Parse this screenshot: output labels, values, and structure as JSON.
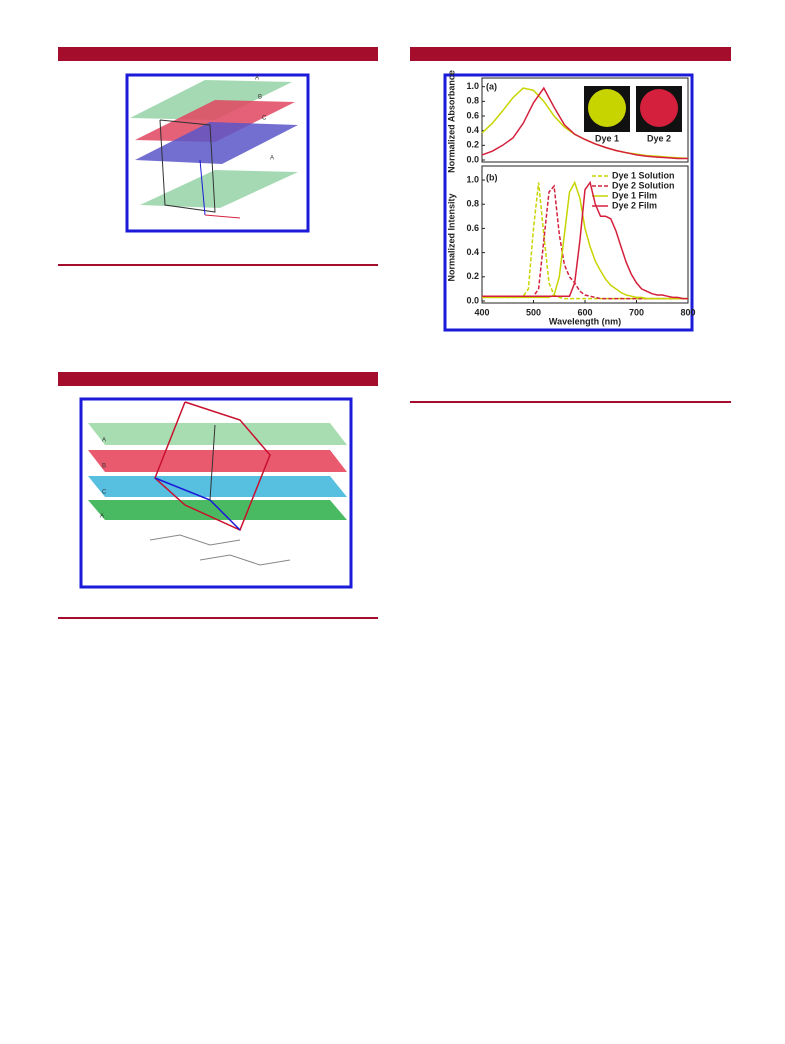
{
  "figures": [
    {
      "plane_labels": [
        "A",
        "B",
        "C",
        "A"
      ]
    },
    {
      "plane_labels": [
        "A",
        "B",
        "C",
        "A"
      ]
    }
  ],
  "chart_data": [
    {
      "type": "line",
      "panel_label": "(a)",
      "y_label": "Normalized Absorbance",
      "x": [
        400,
        420,
        440,
        460,
        480,
        500,
        520,
        540,
        560,
        580,
        600,
        620,
        640,
        660,
        680,
        700,
        720,
        740,
        760,
        780,
        800
      ],
      "xlim": [
        400,
        800
      ],
      "ylim": [
        0,
        1.05
      ],
      "yticks": [
        {
          "value": 0,
          "label": "0.0"
        },
        0.2,
        0.4,
        0.6,
        0.8,
        {
          "value": 1,
          "label": "1.0"
        }
      ],
      "series": [
        {
          "color": "#c8d400",
          "values": [
            0.37,
            0.5,
            0.67,
            0.85,
            0.98,
            0.95,
            0.8,
            0.6,
            0.45,
            0.35,
            0.28,
            0.22,
            0.17,
            0.13,
            0.1,
            0.08,
            0.06,
            0.05,
            0.04,
            0.03,
            0.02
          ]
        },
        {
          "color": "#d4203c",
          "values": [
            0.07,
            0.12,
            0.2,
            0.3,
            0.5,
            0.78,
            0.98,
            0.72,
            0.48,
            0.35,
            0.28,
            0.22,
            0.17,
            0.13,
            0.1,
            0.07,
            0.05,
            0.04,
            0.03,
            0.02,
            0.02
          ]
        }
      ],
      "insets": [
        {
          "label": "Dye 1",
          "color": "#c8d400"
        },
        {
          "label": "Dye 2",
          "color": "#d4203c"
        }
      ]
    },
    {
      "type": "line",
      "panel_label": "(b)",
      "y_label": "Normalized Intensity",
      "x_label": "Wavelength (nm)",
      "x": [
        400,
        410,
        420,
        430,
        440,
        450,
        460,
        470,
        480,
        490,
        500,
        510,
        520,
        530,
        540,
        550,
        560,
        570,
        580,
        590,
        600,
        610,
        620,
        630,
        640,
        650,
        660,
        670,
        680,
        690,
        700,
        710,
        720,
        730,
        740,
        750,
        760,
        770,
        780,
        790,
        800
      ],
      "xlim": [
        400,
        800
      ],
      "xticks": [
        400,
        500,
        600,
        700,
        800
      ],
      "ylim": [
        0,
        1.05
      ],
      "yticks": [
        {
          "value": 0,
          "label": "0.0"
        },
        0.2,
        0.4,
        0.6,
        0.8,
        {
          "value": 1,
          "label": "1.0"
        }
      ],
      "series": [
        {
          "name": "Dye 1 Solution",
          "color": "#c8d400",
          "dashed": true,
          "values": [
            0.03,
            0.03,
            0.03,
            0.03,
            0.03,
            0.03,
            0.03,
            0.03,
            0.04,
            0.1,
            0.6,
            0.98,
            0.55,
            0.15,
            0.05,
            0.03,
            0.02,
            0.02,
            0.02,
            0.02,
            0.02,
            0.02,
            0.02,
            0.02,
            0.02,
            0.02,
            0.02,
            0.02,
            0.02,
            0.02,
            0.02,
            0.02,
            0.02,
            0.02,
            0.02,
            0.02,
            0.02,
            0.02,
            0.02,
            0.02,
            0.02
          ]
        },
        {
          "name": "Dye 2 Solution",
          "color": "#d4203c",
          "dashed": true,
          "values": [
            0.04,
            0.04,
            0.04,
            0.04,
            0.04,
            0.04,
            0.04,
            0.04,
            0.04,
            0.04,
            0.04,
            0.1,
            0.5,
            0.9,
            0.95,
            0.55,
            0.3,
            0.2,
            0.15,
            0.08,
            0.05,
            0.04,
            0.03,
            0.02,
            0.02,
            0.02,
            0.02,
            0.02,
            0.02,
            0.02,
            0.02,
            0.02,
            0.02,
            0.02,
            0.02,
            0.02,
            0.02,
            0.02,
            0.02,
            0.02,
            0.02
          ]
        },
        {
          "name": "Dye 1 Film",
          "color": "#c8d400",
          "dashed": false,
          "values": [
            0.03,
            0.03,
            0.03,
            0.03,
            0.03,
            0.03,
            0.03,
            0.03,
            0.03,
            0.03,
            0.03,
            0.03,
            0.03,
            0.03,
            0.05,
            0.2,
            0.55,
            0.9,
            0.98,
            0.85,
            0.6,
            0.45,
            0.33,
            0.25,
            0.18,
            0.13,
            0.1,
            0.07,
            0.05,
            0.04,
            0.03,
            0.03,
            0.02,
            0.02,
            0.02,
            0.02,
            0.02,
            0.02,
            0.02,
            0.02,
            0.02
          ]
        },
        {
          "name": "Dye 2 Film",
          "color": "#d4203c",
          "dashed": false,
          "values": [
            0.04,
            0.04,
            0.04,
            0.04,
            0.04,
            0.04,
            0.04,
            0.04,
            0.04,
            0.04,
            0.04,
            0.04,
            0.04,
            0.04,
            0.04,
            0.04,
            0.04,
            0.04,
            0.15,
            0.5,
            0.92,
            0.98,
            0.8,
            0.7,
            0.7,
            0.68,
            0.58,
            0.45,
            0.32,
            0.22,
            0.15,
            0.1,
            0.08,
            0.06,
            0.05,
            0.05,
            0.04,
            0.03,
            0.03,
            0.02,
            0.02
          ]
        }
      ]
    }
  ]
}
